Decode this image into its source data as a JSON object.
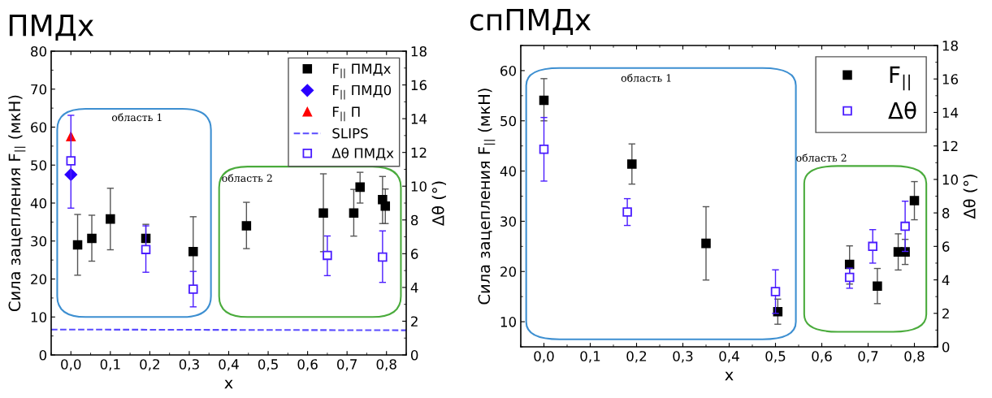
{
  "chart_data": [
    {
      "type": "scatter",
      "title": "ПМДx",
      "xlabel": "x",
      "ylabel": "Сила зацепления F$_{||}$ (мкН)",
      "y2label": "Δθ (°)",
      "xlim": [
        -0.05,
        0.85
      ],
      "xticks": [
        {
          "value": 0,
          "label": "0,0"
        },
        {
          "value": 0.1,
          "label": "0,1"
        },
        {
          "value": 0.2,
          "label": "0,2"
        },
        {
          "value": 0.3,
          "label": "0,3"
        },
        {
          "value": 0.4,
          "label": "0,4"
        },
        {
          "value": 0.5,
          "label": "0,5"
        },
        {
          "value": 0.6,
          "label": "0,6"
        },
        {
          "value": 0.7,
          "label": "0,7"
        },
        {
          "value": 0.8,
          "label": "0,8"
        }
      ],
      "ylim": [
        0,
        80
      ],
      "yticks": [
        0,
        10,
        20,
        30,
        40,
        50,
        60,
        70,
        80
      ],
      "y2lim": [
        0,
        18
      ],
      "y2ticks": [
        0,
        2,
        4,
        6,
        8,
        10,
        12,
        14,
        16,
        18
      ],
      "grid": false,
      "legend": "top right",
      "annotations": [
        "область 1",
        "область 2"
      ],
      "series": [
        {
          "name": "F$_{||}$ ПМДx",
          "color": "#000000",
          "marker": "square",
          "x": [
            0.017,
            0.053,
            0.1,
            0.19,
            0.31,
            0.445,
            0.64,
            0.717,
            0.733,
            0.79,
            0.797
          ],
          "values": [
            29,
            30.7,
            35.8,
            30.7,
            27.2,
            34,
            37.4,
            37.4,
            44.2,
            40.9,
            39.2
          ],
          "errors": [
            [
              21,
              37
            ],
            [
              24.7,
              36.8
            ],
            [
              27.7,
              43.9
            ],
            [
              27,
              34.4
            ],
            [
              18,
              36.4
            ],
            [
              28,
              40.2
            ],
            [
              27.2,
              47.7
            ],
            [
              31.3,
              43.6
            ],
            [
              40,
              48.1
            ],
            [
              34.6,
              47
            ],
            [
              34.6,
              43.7
            ]
          ]
        },
        {
          "name": "F$_{||}$ ПМД0",
          "color": "#2a00ff",
          "marker": "diamond",
          "x": [
            0
          ],
          "values": [
            47.5
          ]
        },
        {
          "name": "F$_{||}$ П",
          "color": "#ff0000",
          "marker": "triangle",
          "x": [
            0
          ],
          "values": [
            57.5
          ]
        },
        {
          "name": "SLIPS",
          "type": "line",
          "color": "#5a4cff",
          "marker": "none",
          "line_style": "dashed",
          "x": [
            -0.05,
            0.85
          ],
          "values": [
            6.7,
            6.5
          ]
        },
        {
          "name": "Δθ ПМДx",
          "color": "#4a1cff",
          "marker": "square",
          "axis": "y2",
          "x": [
            0,
            0.19,
            0.31,
            0.65,
            0.79
          ],
          "values": [
            11.5,
            6.25,
            3.9,
            5.9,
            5.8
          ],
          "errors": [
            [
              8.7,
              14.2
            ],
            [
              4.9,
              7.65
            ],
            [
              2.85,
              4.95
            ],
            [
              4.7,
              7.05
            ],
            [
              4.3,
              7.35
            ]
          ]
        }
      ]
    },
    {
      "type": "scatter",
      "title": "спПМДx",
      "xlabel": "x",
      "ylabel": "Сила зацепления F$_{||}$ (мкН)",
      "y2label": "Δθ (°)",
      "xlim": [
        -0.05,
        0.85
      ],
      "xticks": [
        {
          "value": 0,
          "label": "0,0"
        },
        {
          "value": 0.1,
          "label": "0,1"
        },
        {
          "value": 0.2,
          "label": "0,2"
        },
        {
          "value": 0.3,
          "label": "0,3"
        },
        {
          "value": 0.4,
          "label": "0,4"
        },
        {
          "value": 0.5,
          "label": "0,5"
        },
        {
          "value": 0.6,
          "label": "0,6"
        },
        {
          "value": 0.7,
          "label": "0,7"
        },
        {
          "value": 0.8,
          "label": "0,8"
        }
      ],
      "ylim": [
        5,
        65
      ],
      "yticks": [
        10,
        20,
        30,
        40,
        50,
        60
      ],
      "y2lim": [
        0,
        18
      ],
      "y2ticks": [
        0,
        2,
        4,
        6,
        8,
        10,
        12,
        14,
        16,
        18
      ],
      "grid": false,
      "legend": "top right",
      "annotations": [
        "область 1",
        "область 2"
      ],
      "series": [
        {
          "name": "F$_{||}$",
          "color": "#000000",
          "marker": "square",
          "x": [
            0,
            0.19,
            0.35,
            0.505,
            0.66,
            0.72,
            0.765,
            0.78,
            0.8
          ],
          "values": [
            54.1,
            41.4,
            25.6,
            12,
            21.4,
            17.1,
            23.9,
            23.9,
            34.1
          ],
          "errors": [
            [
              50,
              58.4
            ],
            [
              37.4,
              45.4
            ],
            [
              18.3,
              32.9
            ],
            [
              9.5,
              14.5
            ],
            [
              17.5,
              25.1
            ],
            [
              13.6,
              20.6
            ],
            [
              20.3,
              27.5
            ],
            [
              21.4,
              26.4
            ],
            [
              30.3,
              37.9
            ]
          ]
        },
        {
          "name": "Δθ",
          "color": "#4a1cff",
          "marker": "square",
          "axis": "y2",
          "x": [
            0,
            0.18,
            0.5,
            0.66,
            0.71,
            0.78
          ],
          "values": [
            11.8,
            8.05,
            3.3,
            4.15,
            6.0,
            7.2
          ],
          "errors": [
            [
              9.9,
              13.7
            ],
            [
              7.25,
              8.85
            ],
            [
              2.0,
              4.6
            ],
            [
              3.5,
              4.7
            ],
            [
              5.0,
              7.0
            ],
            [
              5.7,
              8.7
            ]
          ]
        }
      ]
    }
  ]
}
